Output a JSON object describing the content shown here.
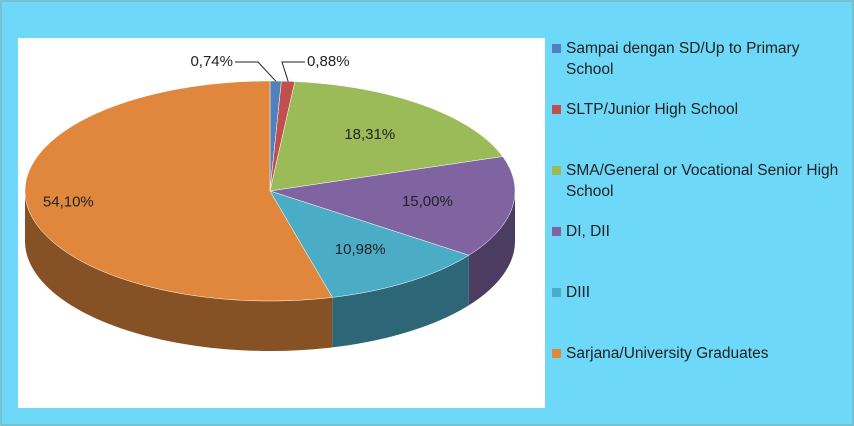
{
  "chart_data": {
    "type": "pie",
    "categories": [
      "Sampai dengan SD/Up to Primary School",
      "SLTP/Junior High School",
      "SMA/General or Vocational Senior High School",
      "DI, DII",
      "DIII",
      "Sarjana/University Graduates"
    ],
    "values": [
      0.74,
      0.88,
      18.31,
      15.0,
      10.98,
      54.1
    ],
    "value_labels": [
      "0,74%",
      "0,88%",
      "18,31%",
      "15,00%",
      "10,98%",
      "54,10%"
    ],
    "colors": [
      "#4f81bd",
      "#c0504d",
      "#9bbb59",
      "#8064a2",
      "#4bacc6",
      "#e0873d"
    ],
    "legend": "right"
  }
}
